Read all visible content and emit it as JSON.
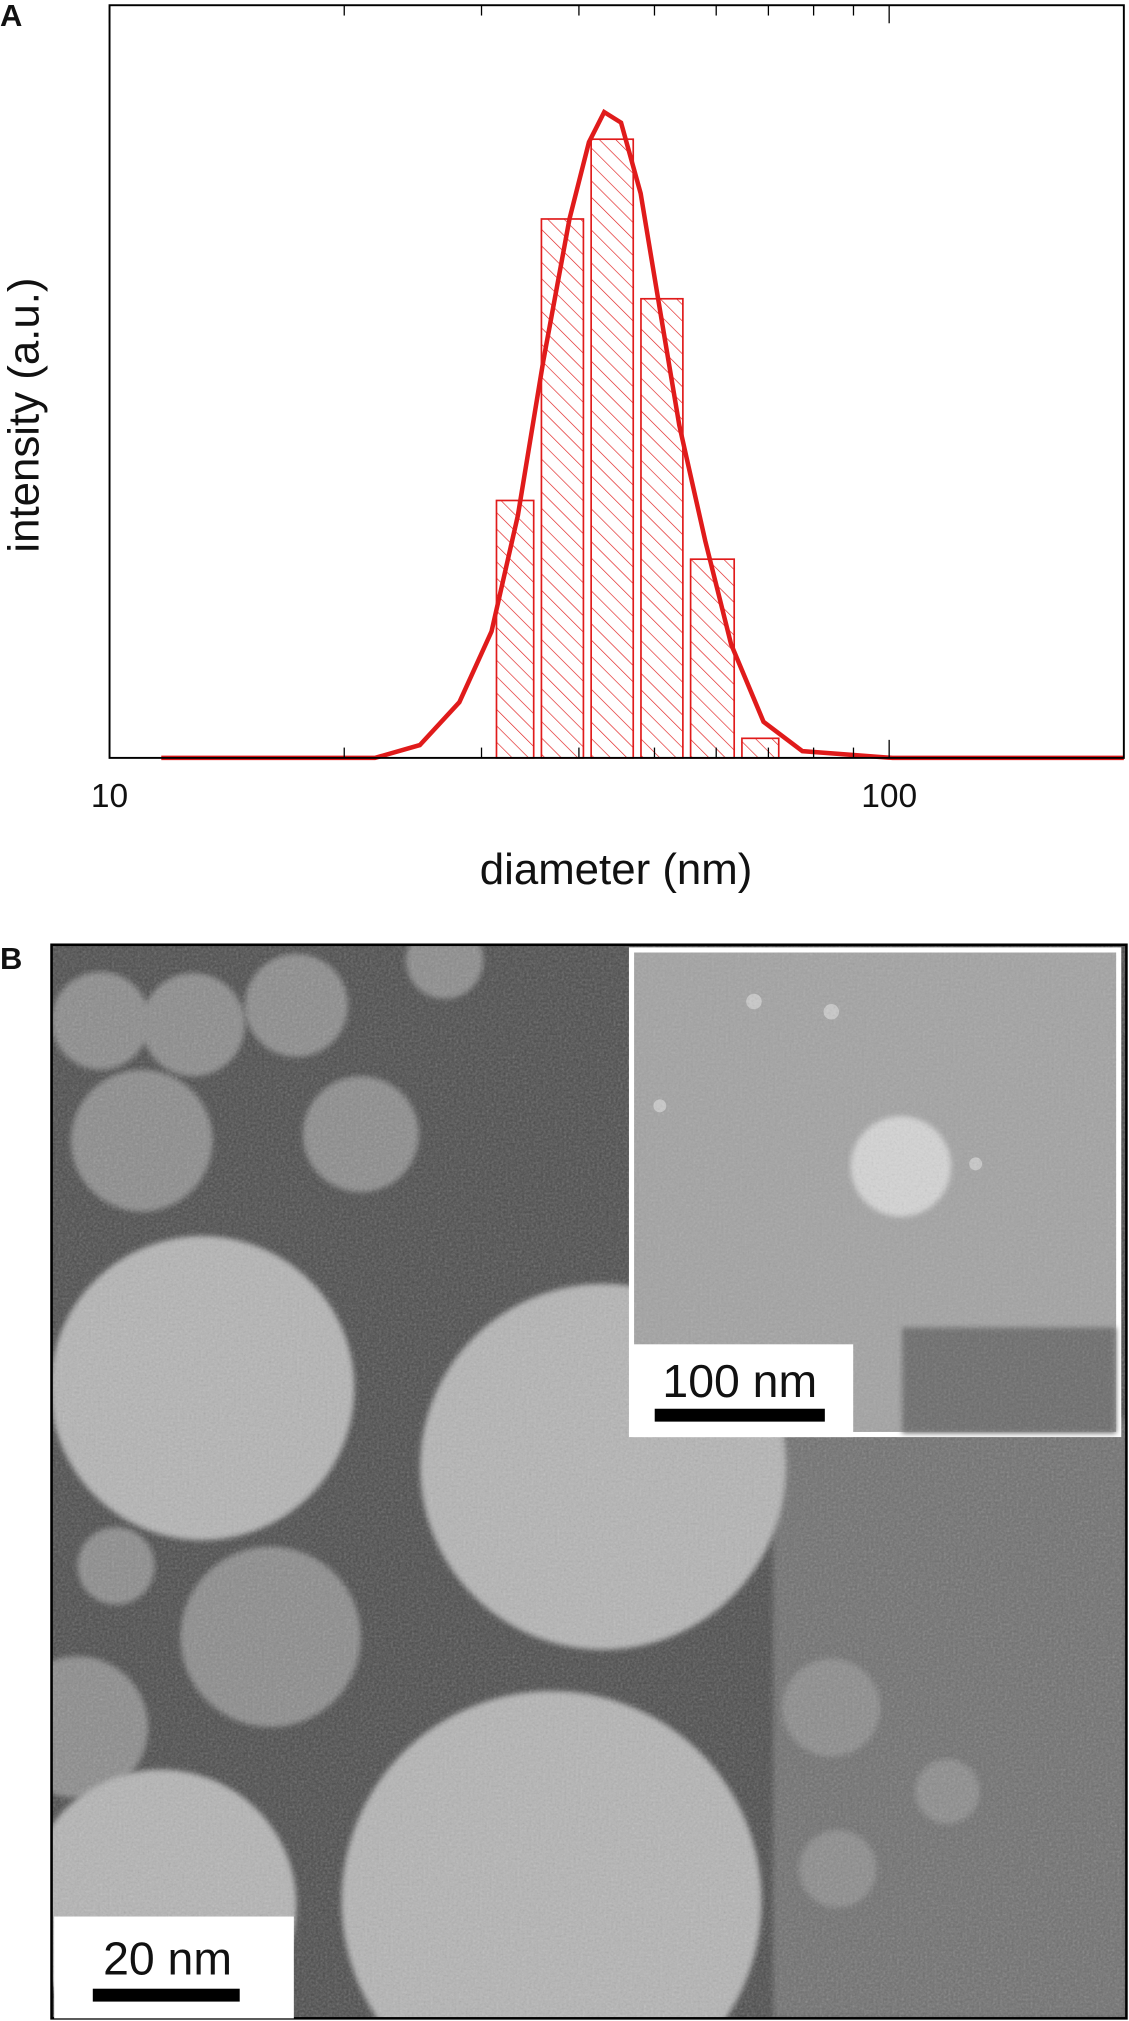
{
  "chart_data": {
    "type": "histogram",
    "panel_label": "A",
    "xlabel": "diameter (nm)",
    "ylabel": "intensity (a.u.)",
    "xscale": "log",
    "xlim": [
      10,
      200
    ],
    "ylim": [
      0,
      1
    ],
    "xticks": [
      10,
      100
    ],
    "minor_xticks": [
      20,
      30,
      40,
      50,
      60,
      70,
      80,
      90
    ],
    "bins": [
      31,
      35.4,
      41,
      47.5,
      55,
      64,
      73
    ],
    "values": [
      0.342,
      0.716,
      0.822,
      0.61,
      0.264,
      0.026
    ],
    "color": "#e01b1b",
    "fit": {
      "color": "#e01b1b",
      "x": [
        11.65,
        21.9,
        25.0,
        28.1,
        30.9,
        33.4,
        36.0,
        38.9,
        41.2,
        43.1,
        45.3,
        48.0,
        50.8,
        53.8,
        58.1,
        62.7,
        69.0,
        77.4,
        101,
        200
      ],
      "y": [
        0,
        0,
        0.017,
        0.074,
        0.168,
        0.322,
        0.527,
        0.716,
        0.818,
        0.858,
        0.844,
        0.75,
        0.596,
        0.442,
        0.288,
        0.151,
        0.048,
        0.009,
        0,
        0
      ]
    }
  },
  "panel_b": {
    "label": "B",
    "scale_bar": "20 nm",
    "inset_scale_bar": "100 nm"
  }
}
